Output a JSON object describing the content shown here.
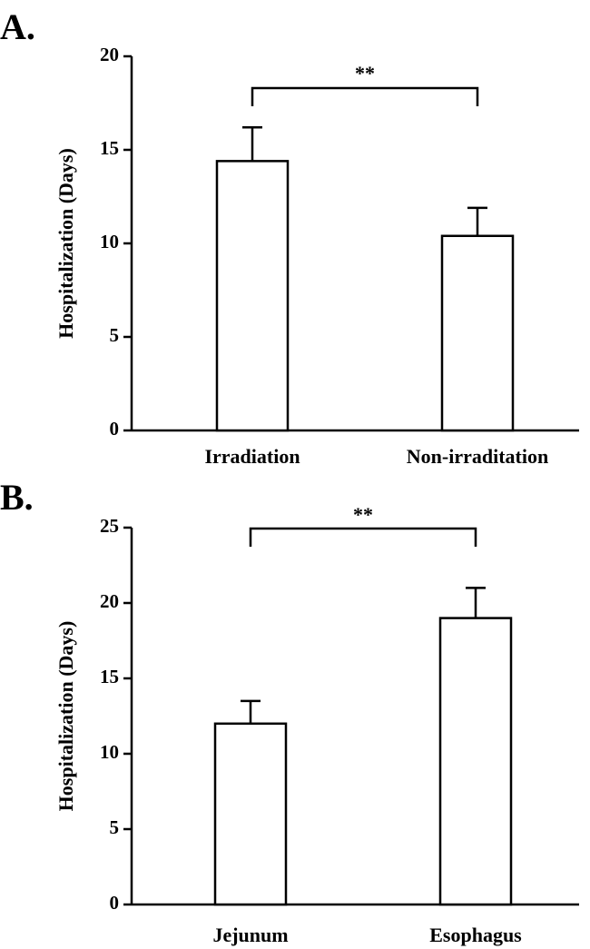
{
  "chart_data": [
    {
      "type": "bar",
      "panel_label": "A.",
      "categories": [
        "Irradiation",
        "Non-irraditation"
      ],
      "values": [
        14.4,
        10.4
      ],
      "errors": [
        1.8,
        1.5
      ],
      "ylabel": "Hospitalization (Days)",
      "ylim": [
        0,
        20
      ],
      "yticks": [
        0,
        5,
        10,
        15,
        20
      ],
      "significance": {
        "label": "**",
        "between": [
          0,
          1
        ]
      }
    },
    {
      "type": "bar",
      "panel_label": "B.",
      "categories": [
        "Jejunum",
        "Esophagus"
      ],
      "values": [
        12.0,
        19.0
      ],
      "errors": [
        1.5,
        2.0
      ],
      "ylabel": "Hospitalization (Days)",
      "ylim": [
        0,
        25
      ],
      "yticks": [
        0,
        5,
        10,
        15,
        20,
        25
      ],
      "significance": {
        "label": "**",
        "between": [
          0,
          1
        ]
      }
    }
  ]
}
